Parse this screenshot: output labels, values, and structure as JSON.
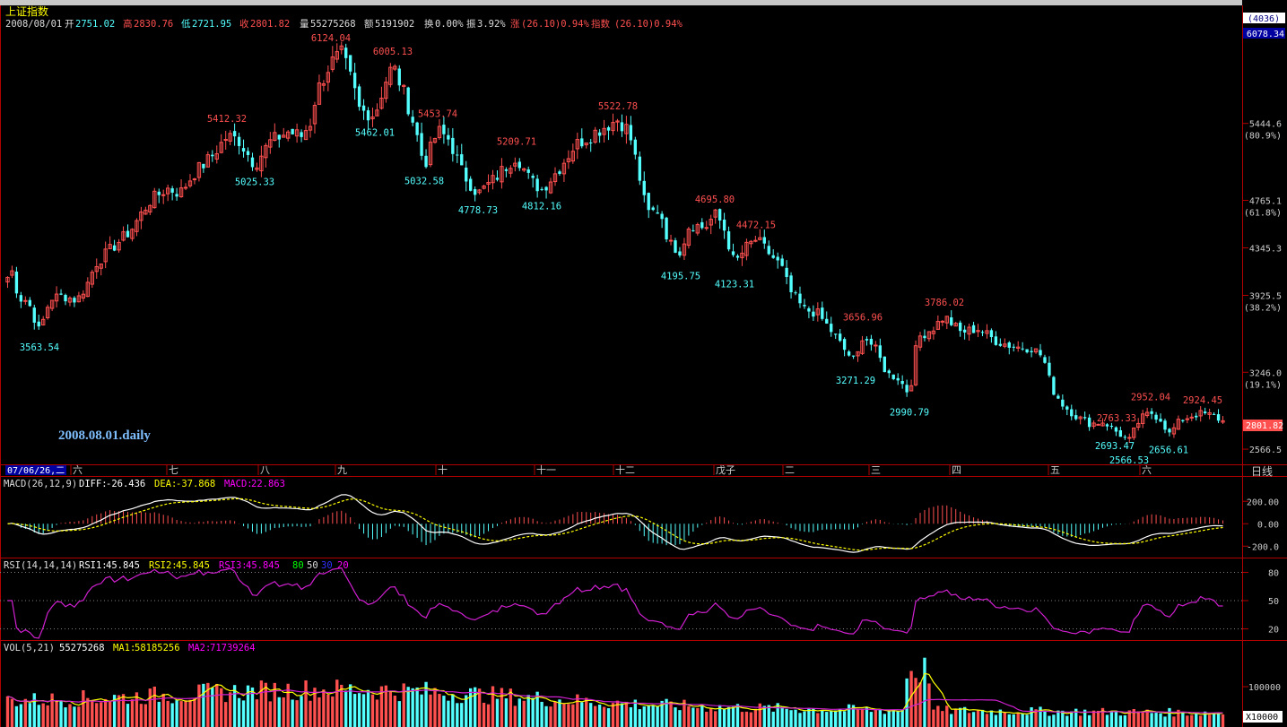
{
  "title": "上证指数",
  "header": {
    "date": "2008/08/01",
    "open_label": "开",
    "open": "2751.02",
    "high_label": "高",
    "high": "2830.76",
    "low_label": "低",
    "low": "2721.95",
    "close_label": "收",
    "close": "2801.82",
    "vol_label": "量",
    "vol": "55275268",
    "amount_label": "额",
    "amount": "5191902",
    "turnover_label": "换",
    "turnover": "0.00%",
    "amplitude_label": "振",
    "amplitude": "3.92%",
    "change_label": "涨",
    "change": "(26.10)0.94%",
    "index_label": "指数",
    "index_change": "(26.10)0.94%"
  },
  "corner": {
    "count": "(4036)",
    "top_price": "6078.34"
  },
  "watermark": "2008.08.01.daily",
  "date_start": "07/06/26,二",
  "period_button": "日线",
  "colors": {
    "up": "#ff5050",
    "down": "#54ffff",
    "frame": "#b00000",
    "yellow": "#ffff00",
    "magenta": "#ff00ff",
    "white": "#ffffff"
  },
  "chart_data": [
    {
      "type": "candlestick",
      "name": "上证指数",
      "ylim": [
        2480,
        6250
      ],
      "price_ticks": [
        "6078.34",
        "5444.6",
        "4765.1",
        "4345.3",
        "3925.5",
        "3246.0",
        "2801.8",
        "2566.5"
      ],
      "fib_labels": [
        "(80.9%)",
        "(61.8%)",
        "(38.2%)",
        "(19.1%)"
      ],
      "month_labels": [
        "六",
        "七",
        "八",
        "九",
        "十",
        "十一",
        "十二",
        "戊子",
        "二",
        "三",
        "四",
        "五",
        "六"
      ],
      "high_marks": [
        {
          "t": 0.252,
          "value": 5412.32,
          "label": "5412.32"
        },
        {
          "t": 0.368,
          "value": 6124.04,
          "label": "6124.04"
        },
        {
          "t": 0.437,
          "value": 6005.13,
          "label": "6005.13"
        },
        {
          "t": 0.487,
          "value": 5453.74,
          "label": "5453.74"
        },
        {
          "t": 0.575,
          "value": 5209.71,
          "label": "5209.71"
        },
        {
          "t": 0.688,
          "value": 5522.78,
          "label": "5522.78"
        },
        {
          "t": 0.796,
          "value": 4695.8,
          "label": "4695.80"
        },
        {
          "t": 0.842,
          "value": 4472.15,
          "label": "4472.15"
        },
        {
          "t": 0.961,
          "value": 3656.96,
          "label": "3656.96"
        },
        {
          "t": 1.052,
          "value": 3786.02,
          "label": "3786.02"
        },
        {
          "t": 1.244,
          "value": 2763.33,
          "label": "2763.33"
        },
        {
          "t": 1.282,
          "value": 2952.04,
          "label": "2952.04"
        },
        {
          "t": 1.34,
          "value": 2924.45,
          "label": "2924.45"
        }
      ],
      "low_marks": [
        {
          "t": 0.043,
          "value": 3563.54,
          "label": "3563.54"
        },
        {
          "t": 0.283,
          "value": 5025.33,
          "label": "5025.33"
        },
        {
          "t": 0.417,
          "value": 5462.01,
          "label": "5462.01"
        },
        {
          "t": 0.472,
          "value": 5032.58,
          "label": "5032.58"
        },
        {
          "t": 0.532,
          "value": 4778.73,
          "label": "4778.73"
        },
        {
          "t": 0.603,
          "value": 4812.16,
          "label": "4812.16"
        },
        {
          "t": 0.758,
          "value": 4195.75,
          "label": "4195.75"
        },
        {
          "t": 0.818,
          "value": 4123.31,
          "label": "4123.31"
        },
        {
          "t": 0.953,
          "value": 3271.29,
          "label": "3271.29"
        },
        {
          "t": 1.013,
          "value": 2990.79,
          "label": "2990.79"
        },
        {
          "t": 1.242,
          "value": 2693.47,
          "label": "2693.47"
        },
        {
          "t": 1.258,
          "value": 2566.53,
          "label": "2566.53"
        },
        {
          "t": 1.302,
          "value": 2656.61,
          "label": "2656.61"
        }
      ],
      "path": [
        [
          0.005,
          4050
        ],
        [
          0.012,
          4150
        ],
        [
          0.02,
          3900
        ],
        [
          0.03,
          3880
        ],
        [
          0.043,
          3600
        ],
        [
          0.055,
          3900
        ],
        [
          0.07,
          3920
        ],
        [
          0.085,
          3880
        ],
        [
          0.098,
          4050
        ],
        [
          0.105,
          4200
        ],
        [
          0.125,
          4350
        ],
        [
          0.145,
          4500
        ],
        [
          0.165,
          4750
        ],
        [
          0.185,
          4870
        ],
        [
          0.2,
          4830
        ],
        [
          0.215,
          5000
        ],
        [
          0.235,
          5150
        ],
        [
          0.252,
          5330
        ],
        [
          0.265,
          5300
        ],
        [
          0.283,
          5080
        ],
        [
          0.3,
          5280
        ],
        [
          0.32,
          5370
        ],
        [
          0.335,
          5330
        ],
        [
          0.345,
          5450
        ],
        [
          0.352,
          5720
        ],
        [
          0.368,
          5980
        ],
        [
          0.38,
          6060
        ],
        [
          0.392,
          5800
        ],
        [
          0.4,
          5560
        ],
        [
          0.417,
          5520
        ],
        [
          0.428,
          5800
        ],
        [
          0.437,
          5960
        ],
        [
          0.45,
          5700
        ],
        [
          0.462,
          5400
        ],
        [
          0.472,
          5070
        ],
        [
          0.487,
          5380
        ],
        [
          0.5,
          5300
        ],
        [
          0.515,
          5000
        ],
        [
          0.532,
          4820
        ],
        [
          0.55,
          4950
        ],
        [
          0.565,
          5080
        ],
        [
          0.575,
          5160
        ],
        [
          0.59,
          4940
        ],
        [
          0.603,
          4860
        ],
        [
          0.62,
          5020
        ],
        [
          0.64,
          5250
        ],
        [
          0.665,
          5380
        ],
        [
          0.688,
          5480
        ],
        [
          0.7,
          5380
        ],
        [
          0.71,
          5050
        ],
        [
          0.72,
          4650
        ],
        [
          0.735,
          4680
        ],
        [
          0.745,
          4380
        ],
        [
          0.758,
          4320
        ],
        [
          0.768,
          4560
        ],
        [
          0.785,
          4520
        ],
        [
          0.796,
          4640
        ],
        [
          0.805,
          4550
        ],
        [
          0.818,
          4200
        ],
        [
          0.83,
          4340
        ],
        [
          0.842,
          4420
        ],
        [
          0.855,
          4310
        ],
        [
          0.87,
          4180
        ],
        [
          0.88,
          3960
        ],
        [
          0.895,
          3800
        ],
        [
          0.91,
          3770
        ],
        [
          0.925,
          3620
        ],
        [
          0.94,
          3450
        ],
        [
          0.953,
          3330
        ],
        [
          0.961,
          3580
        ],
        [
          0.975,
          3450
        ],
        [
          0.988,
          3230
        ],
        [
          1.0,
          3200
        ],
        [
          1.013,
          3050
        ],
        [
          1.022,
          3550
        ],
        [
          1.04,
          3640
        ],
        [
          1.052,
          3740
        ],
        [
          1.07,
          3600
        ],
        [
          1.09,
          3630
        ],
        [
          1.11,
          3520
        ],
        [
          1.13,
          3470
        ],
        [
          1.15,
          3460
        ],
        [
          1.162,
          3380
        ],
        [
          1.172,
          3100
        ],
        [
          1.185,
          2950
        ],
        [
          1.2,
          2850
        ],
        [
          1.215,
          2790
        ],
        [
          1.23,
          2810
        ],
        [
          1.242,
          2730
        ],
        [
          1.258,
          2640
        ],
        [
          1.27,
          2830
        ],
        [
          1.282,
          2890
        ],
        [
          1.295,
          2820
        ],
        [
          1.302,
          2690
        ],
        [
          1.315,
          2820
        ],
        [
          1.33,
          2870
        ],
        [
          1.34,
          2880
        ],
        [
          1.352,
          2860
        ],
        [
          1.365,
          2800
        ]
      ]
    },
    {
      "type": "macd",
      "name": "MACD",
      "params": "MACD(26,12,9)",
      "diff_label": "DIFF:",
      "diff": "-26.436",
      "dea_label": "DEA:",
      "dea": "-37.868",
      "macd_label": "MACD:",
      "macd": "22.863",
      "ylim": [
        -270,
        290
      ],
      "ticks": [
        "200.00",
        "0.00",
        "-200.0"
      ],
      "tick_values": [
        200,
        0,
        -200
      ]
    },
    {
      "type": "rsi",
      "name": "RSI",
      "params": "RSI(14,14,14)",
      "rsi1_label": "RSI1:",
      "rsi1": "45.845",
      "rsi2_label": "RSI2:",
      "rsi2": "45.845",
      "rsi3_label": "RSI3:",
      "rsi3": "45.845",
      "levels": [
        "80",
        "50",
        "30",
        "20"
      ],
      "ylim": [
        10,
        90
      ],
      "ticks": [
        "80",
        "50",
        "20"
      ],
      "tick_values": [
        80,
        50,
        20
      ]
    },
    {
      "type": "bar",
      "name": "VOL",
      "params": "VOL(5,21)",
      "vol": "55275268",
      "ma1_label": "MA1:",
      "ma1": "58185256",
      "ma2_label": "MA2:",
      "ma2": "71739264",
      "ylim": [
        0,
        180000
      ],
      "ticks": [
        "100000"
      ],
      "tick_values": [
        100000
      ],
      "unit": "X10000"
    }
  ]
}
